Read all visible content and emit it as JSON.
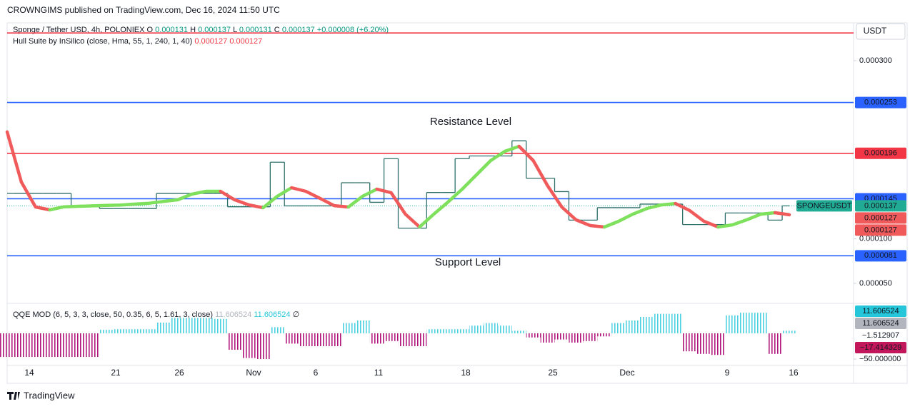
{
  "header": {
    "publisher": "CROWNGIMS published on TradingView.com, Dec 16, 2024 11:50 UTC",
    "currency": "USDT",
    "footer": "TradingView"
  },
  "chart_data": [
    {
      "type": "line",
      "symbol": "Sponge / Tether USD, 4h, POLONIEX",
      "ohlc": [
        {
          "key": "O",
          "value": "0.000131"
        },
        {
          "key": "H",
          "value": "0.000137"
        },
        {
          "key": "L",
          "value": "0.000131"
        },
        {
          "key": "C",
          "value": "0.000137"
        }
      ],
      "change": "+0.000008 (+6.20%)",
      "ohlc_color": "#089981",
      "ylim": [
        2.76e-05,
        0.00034
      ],
      "yticks": [
        {
          "value": 0.0003,
          "label": "0.000300"
        },
        {
          "value": 0.0001,
          "label": "0.000100"
        },
        {
          "value": 5e-05,
          "label": "0.000050"
        }
      ],
      "x_labels": [
        "14",
        "21",
        "26",
        "Nov",
        "6",
        "11",
        "18",
        "25",
        "Dec",
        "9",
        "16"
      ],
      "annotations": [
        {
          "text": "Resistance Level",
          "color": "#e53935"
        },
        {
          "text": "Support Level",
          "color": "#e53935"
        }
      ],
      "levels": {
        "values": [
          0.000331,
          0.000253,
          0.000196,
          0.000145,
          8.1e-05
        ],
        "value_labels": [
          null,
          "0.000253",
          "0.000196",
          "0.000145",
          "0.000081"
        ],
        "colors": [
          "#f23645",
          "#2962ff",
          "#f23645",
          "#2962ff",
          "#2962ff"
        ]
      },
      "series": [
        {
          "name": "SPONGEUSDT",
          "color": "#2f6f6b",
          "label_color": "#22ab94",
          "last_label": "0.000137",
          "values": [
            0.000151,
            0.000151,
            0.000151,
            0.000151,
            0.000151,
            0.000136,
            0.000136,
            0.000134,
            0.000134,
            0.000134,
            0.000134,
            0.000151,
            0.000151,
            0.000151,
            0.000151,
            0.000151,
            0.000136,
            0.000136,
            0.000136,
            0.000186,
            0.000137,
            0.000137,
            0.000137,
            0.000137,
            0.000163,
            0.000163,
            0.000141,
            0.00019,
            0.000112,
            0.000112,
            0.000152,
            0.000152,
            0.00019,
            0.000193,
            0.000193,
            0.000193,
            0.00021,
            0.000168,
            0.000168,
            0.000153,
            0.000121,
            0.000121,
            0.000135,
            0.000135,
            0.000135,
            0.000139,
            0.000139,
            0.000139,
            0.000116,
            0.000116,
            0.000116,
            0.000129,
            0.000129,
            0.000129,
            0.000121,
            0.000137
          ]
        },
        {
          "name": "Hull Suite by InSilico (close, Hma, 55, 1, 240, 1, 40)",
          "rise_color": "#7ee05c",
          "fall_color": "#f05a5a",
          "last_labels": [
            "0.000127",
            "0.000127"
          ],
          "values": [
            0.00022,
            0.0001638,
            0.0001357,
            0.0001325,
            0.000136,
            0.0001365,
            0.000137,
            0.0001375,
            0.000138,
            0.000139,
            0.00014,
            0.000142,
            0.0001438,
            0.0001502,
            0.0001534,
            0.0001534,
            0.0001438,
            0.0001381,
            0.0001349,
            0.0001478,
            0.0001574,
            0.0001534,
            0.0001454,
            0.0001373,
            0.0001357,
            0.0001478,
            0.0001558,
            0.0001518,
            0.0001277,
            0.0001133,
            0.0001277,
            0.0001413,
            0.0001558,
            0.0001718,
            0.0001878,
            0.0001982,
            0.0002038,
            0.0001878,
            0.0001598,
            0.0001357,
            0.0001213,
            0.0001149,
            0.0001133,
            0.0001197,
            0.0001277,
            0.0001341,
            0.0001381,
            0.0001397,
            0.0001317,
            0.0001197,
            0.0001133,
            0.0001157,
            0.0001213,
            0.0001277,
            0.0001293,
            0.000127
          ]
        }
      ]
    },
    {
      "type": "bar",
      "name": "QQE MOD (6, 5, 3, 3, close, 50, 0.35, 6, 5, 1.61, 3, close)",
      "legend_values": [
        {
          "text": "11.606524",
          "color": "#b2b5be"
        },
        {
          "text": "11.606524",
          "color": "#26c6da"
        },
        {
          "text": "∅",
          "color": "#131722"
        }
      ],
      "ylim": [
        -62.5,
        58.3
      ],
      "yticks": [
        {
          "value": -50,
          "label": "−50.000000"
        }
      ],
      "pos_color": "#4dd0e1",
      "neg_color": "#b0177c",
      "values": [
        -46,
        -46,
        -46,
        -46,
        -46,
        -46,
        -46,
        7,
        8,
        8,
        8,
        21,
        30,
        30,
        30,
        28,
        -32,
        -48,
        -50,
        12,
        -20,
        -25,
        -25,
        -25,
        20,
        25,
        -20,
        -15,
        -25,
        -25,
        8,
        8,
        8,
        15,
        20,
        15,
        5,
        -8,
        -18,
        -12,
        -18,
        -15,
        -6,
        20,
        25,
        32,
        38,
        38,
        -35,
        -40,
        -42,
        35,
        40,
        40,
        -40,
        5
      ],
      "marker_labels": [
        {
          "value": 11.606524,
          "label": "11.606524",
          "color": "#26c6da"
        },
        {
          "value": 11.606524,
          "label": "11.606524",
          "color": "#b2b5be"
        },
        {
          "value": -1.512907,
          "label": "−1.512907"
        },
        {
          "value": -17.414329,
          "label": "−17.414329",
          "color": "#c2185b"
        }
      ]
    }
  ]
}
